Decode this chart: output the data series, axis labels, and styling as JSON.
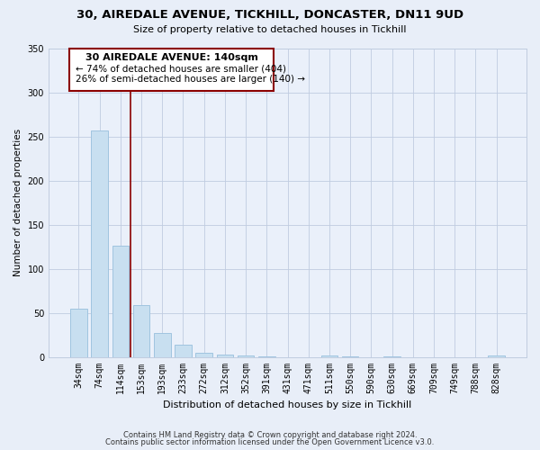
{
  "title": "30, AIREDALE AVENUE, TICKHILL, DONCASTER, DN11 9UD",
  "subtitle": "Size of property relative to detached houses in Tickhill",
  "xlabel": "Distribution of detached houses by size in Tickhill",
  "ylabel": "Number of detached properties",
  "bar_labels": [
    "34sqm",
    "74sqm",
    "114sqm",
    "153sqm",
    "193sqm",
    "233sqm",
    "272sqm",
    "312sqm",
    "352sqm",
    "391sqm",
    "431sqm",
    "471sqm",
    "511sqm",
    "550sqm",
    "590sqm",
    "630sqm",
    "669sqm",
    "709sqm",
    "749sqm",
    "788sqm",
    "828sqm"
  ],
  "bar_values": [
    55,
    257,
    126,
    59,
    27,
    14,
    5,
    3,
    2,
    1,
    0,
    0,
    2,
    1,
    0,
    1,
    0,
    0,
    0,
    0,
    2
  ],
  "bar_color": "#c8dff0",
  "bar_edge_color": "#a0c4e0",
  "annotation_box_title": "30 AIREDALE AVENUE: 140sqm",
  "annotation_line1": "← 74% of detached houses are smaller (404)",
  "annotation_line2": "26% of semi-detached houses are larger (140) →",
  "vline_x_index": 2.5,
  "vline_color": "#8b0000",
  "ylim": [
    0,
    350
  ],
  "yticks": [
    0,
    50,
    100,
    150,
    200,
    250,
    300,
    350
  ],
  "footer_line1": "Contains HM Land Registry data © Crown copyright and database right 2024.",
  "footer_line2": "Contains public sector information licensed under the Open Government Licence v3.0.",
  "background_color": "#e8eef8",
  "plot_bg_color": "#eaf0fa",
  "grid_color": "#c0cce0"
}
